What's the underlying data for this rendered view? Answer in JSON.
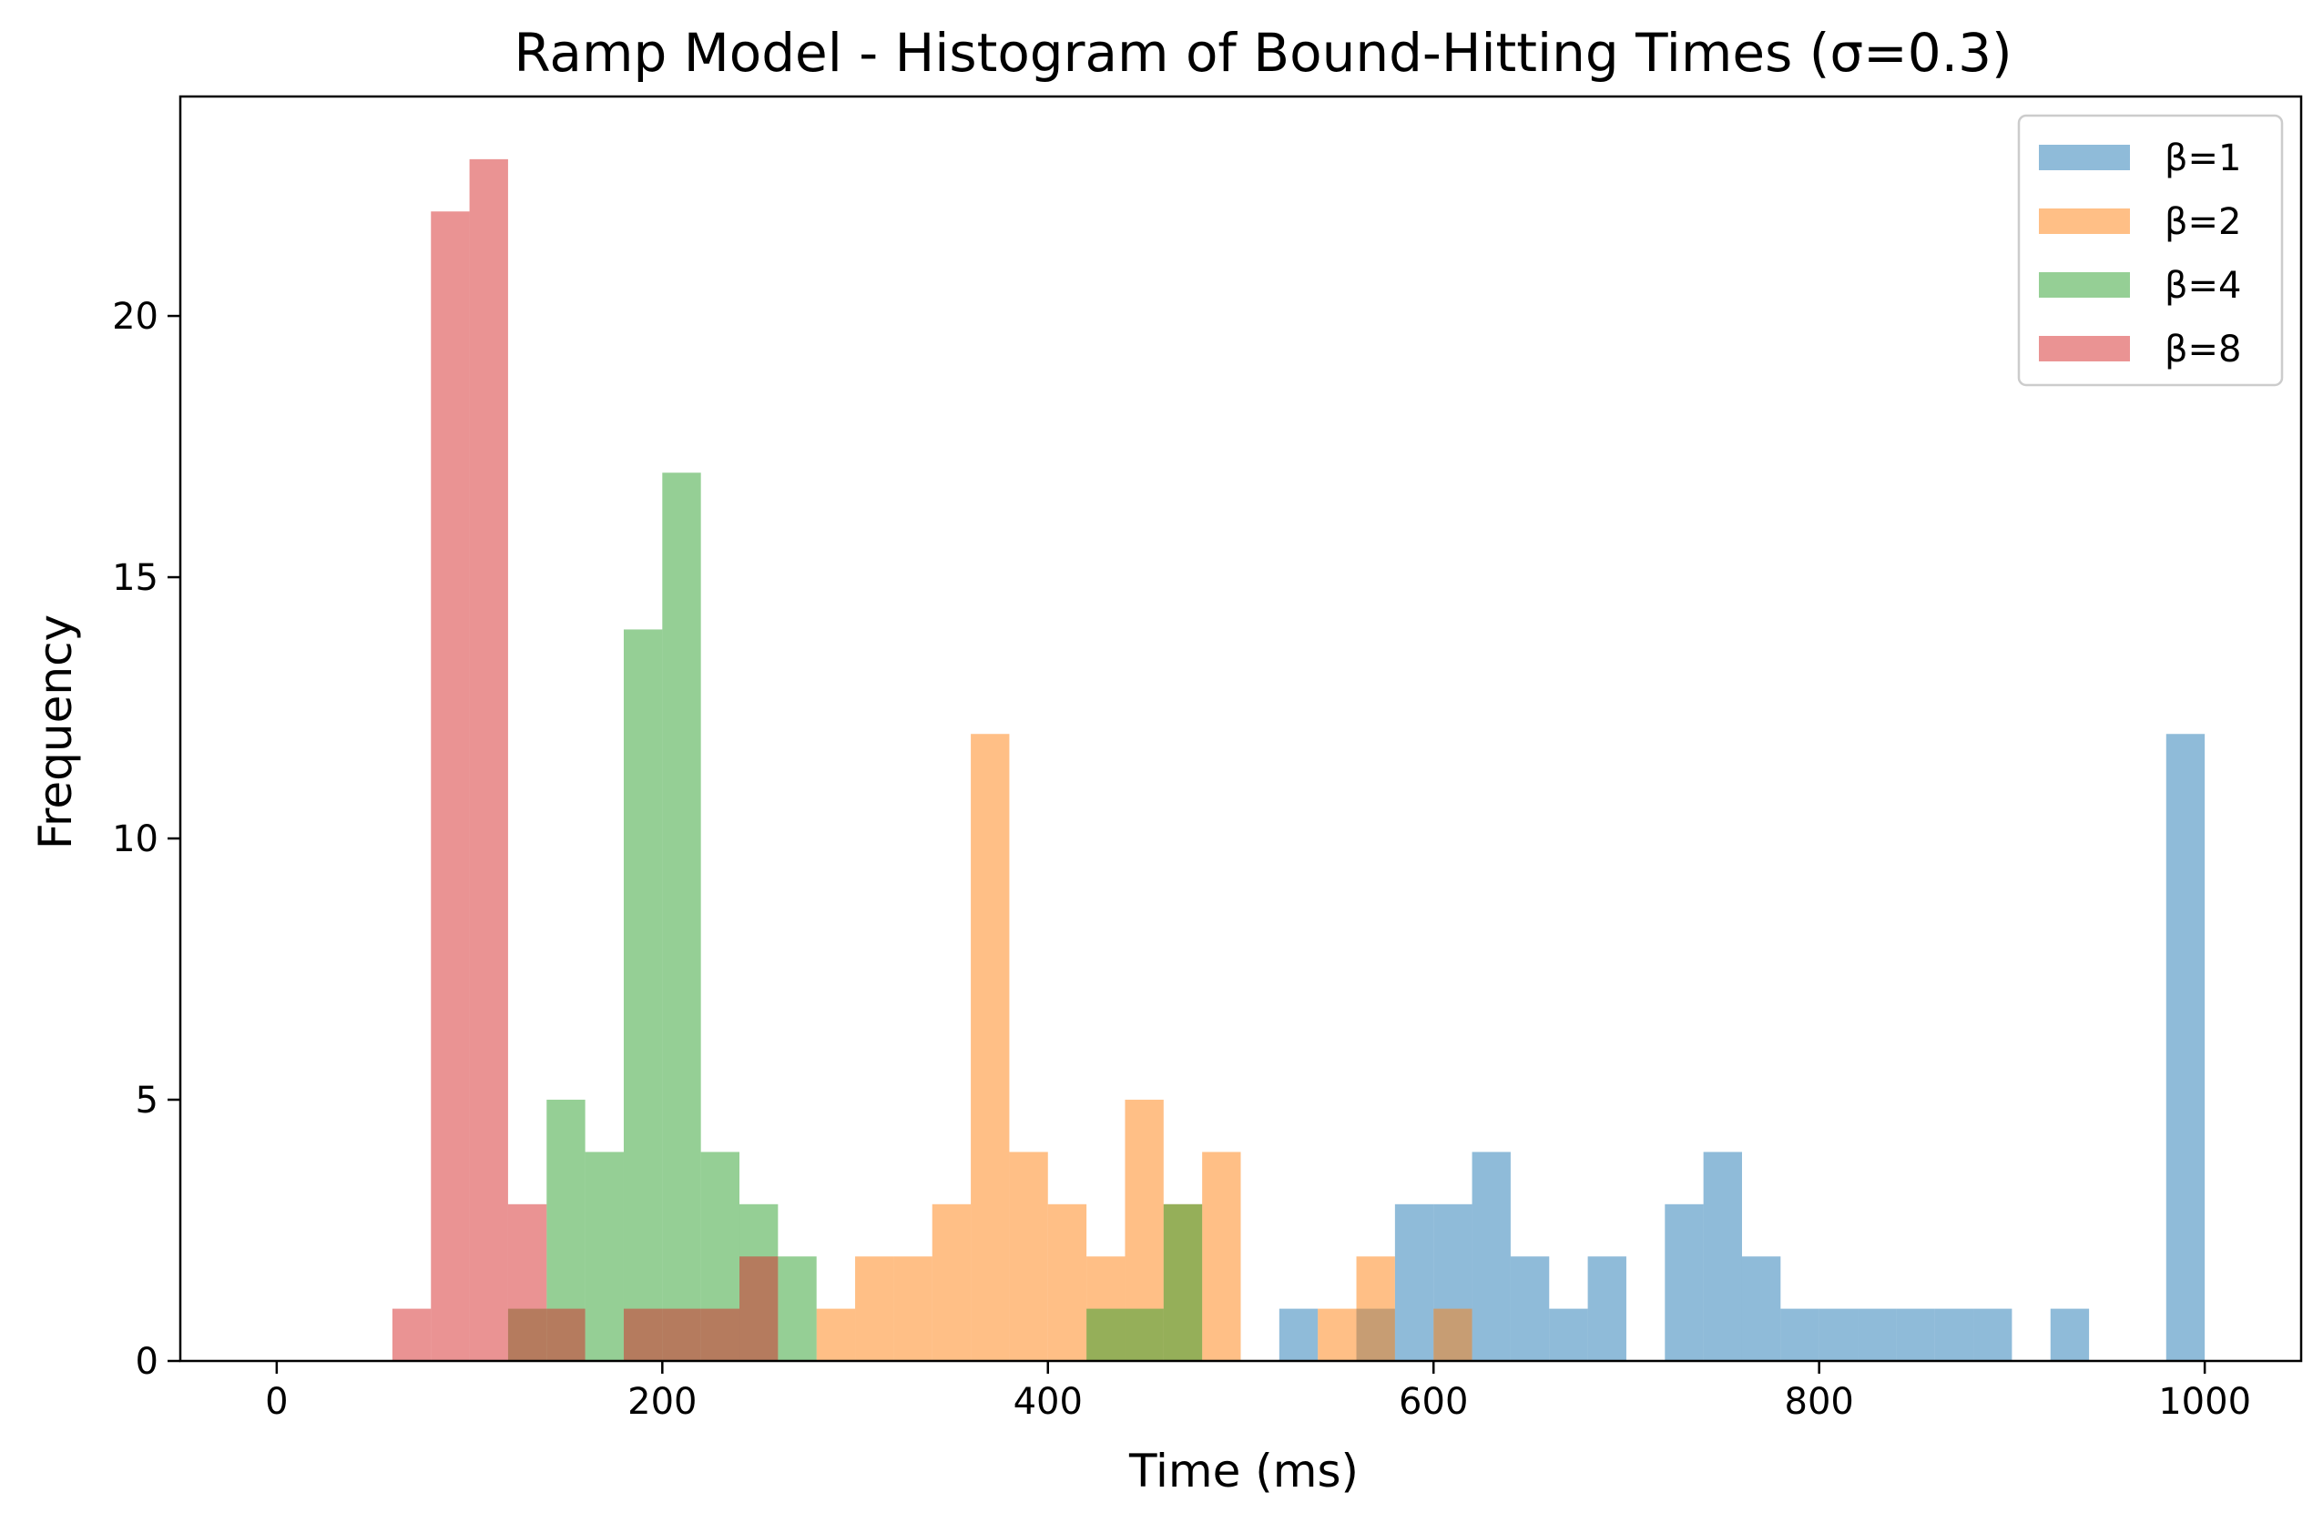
{
  "chart_data": {
    "type": "bar",
    "title": "Ramp Model - Histogram of Bound-Hitting Times (σ=0.3)",
    "xlabel": "Time (ms)",
    "ylabel": "Frequency",
    "xlim": [
      -50,
      1050
    ],
    "ylim": [
      0,
      24.2
    ],
    "xticks": [
      0,
      200,
      400,
      600,
      800,
      1000
    ],
    "yticks": [
      0,
      5,
      10,
      15,
      20
    ],
    "grid": false,
    "legend": "top-right",
    "bar_opacity": 0.5,
    "series": [
      {
        "name": "β=1",
        "color": "#1f77b4",
        "bins": [
          {
            "x0": 520,
            "x1": 540,
            "count": 1
          },
          {
            "x0": 560,
            "x1": 580,
            "count": 1
          },
          {
            "x0": 580,
            "x1": 600,
            "count": 3
          },
          {
            "x0": 600,
            "x1": 620,
            "count": 3
          },
          {
            "x0": 620,
            "x1": 640,
            "count": 4
          },
          {
            "x0": 640,
            "x1": 660,
            "count": 2
          },
          {
            "x0": 660,
            "x1": 680,
            "count": 1
          },
          {
            "x0": 680,
            "x1": 700,
            "count": 2
          },
          {
            "x0": 720,
            "x1": 740,
            "count": 3
          },
          {
            "x0": 740,
            "x1": 760,
            "count": 4
          },
          {
            "x0": 760,
            "x1": 780,
            "count": 2
          },
          {
            "x0": 780,
            "x1": 800,
            "count": 1
          },
          {
            "x0": 800,
            "x1": 820,
            "count": 1
          },
          {
            "x0": 820,
            "x1": 840,
            "count": 1
          },
          {
            "x0": 840,
            "x1": 860,
            "count": 1
          },
          {
            "x0": 860,
            "x1": 880,
            "count": 1
          },
          {
            "x0": 880,
            "x1": 900,
            "count": 1
          },
          {
            "x0": 920,
            "x1": 940,
            "count": 1
          },
          {
            "x0": 980,
            "x1": 1000,
            "count": 12
          }
        ]
      },
      {
        "name": "β=2",
        "color": "#ff7f0e",
        "bins": [
          {
            "x0": 280,
            "x1": 300,
            "count": 1
          },
          {
            "x0": 300,
            "x1": 320,
            "count": 2
          },
          {
            "x0": 320,
            "x1": 340,
            "count": 2
          },
          {
            "x0": 340,
            "x1": 360,
            "count": 3
          },
          {
            "x0": 360,
            "x1": 380,
            "count": 12
          },
          {
            "x0": 380,
            "x1": 400,
            "count": 4
          },
          {
            "x0": 400,
            "x1": 420,
            "count": 3
          },
          {
            "x0": 420,
            "x1": 440,
            "count": 2
          },
          {
            "x0": 440,
            "x1": 460,
            "count": 5
          },
          {
            "x0": 460,
            "x1": 480,
            "count": 3
          },
          {
            "x0": 480,
            "x1": 500,
            "count": 4
          },
          {
            "x0": 540,
            "x1": 560,
            "count": 1
          },
          {
            "x0": 560,
            "x1": 580,
            "count": 2
          },
          {
            "x0": 600,
            "x1": 620,
            "count": 1
          }
        ]
      },
      {
        "name": "β=4",
        "color": "#2ca02c",
        "bins": [
          {
            "x0": 120,
            "x1": 140,
            "count": 1
          },
          {
            "x0": 140,
            "x1": 160,
            "count": 5
          },
          {
            "x0": 160,
            "x1": 180,
            "count": 4
          },
          {
            "x0": 180,
            "x1": 200,
            "count": 14
          },
          {
            "x0": 200,
            "x1": 220,
            "count": 17
          },
          {
            "x0": 220,
            "x1": 240,
            "count": 4
          },
          {
            "x0": 240,
            "x1": 260,
            "count": 3
          },
          {
            "x0": 260,
            "x1": 280,
            "count": 2
          },
          {
            "x0": 420,
            "x1": 440,
            "count": 1
          },
          {
            "x0": 440,
            "x1": 460,
            "count": 1
          },
          {
            "x0": 460,
            "x1": 480,
            "count": 3
          }
        ]
      },
      {
        "name": "β=8",
        "color": "#d62728",
        "bins": [
          {
            "x0": 60,
            "x1": 80,
            "count": 1
          },
          {
            "x0": 80,
            "x1": 100,
            "count": 22
          },
          {
            "x0": 100,
            "x1": 120,
            "count": 23
          },
          {
            "x0": 120,
            "x1": 140,
            "count": 3
          },
          {
            "x0": 140,
            "x1": 160,
            "count": 1
          },
          {
            "x0": 180,
            "x1": 200,
            "count": 1
          },
          {
            "x0": 200,
            "x1": 220,
            "count": 1
          },
          {
            "x0": 220,
            "x1": 240,
            "count": 1
          },
          {
            "x0": 240,
            "x1": 260,
            "count": 2
          }
        ]
      }
    ]
  }
}
